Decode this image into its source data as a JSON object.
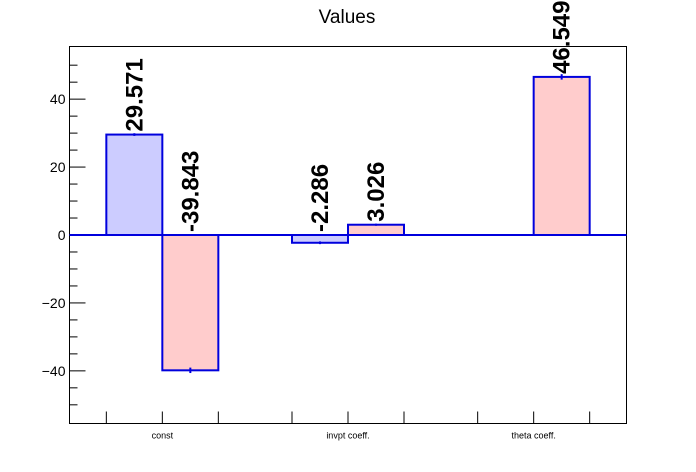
{
  "chart_data": {
    "type": "bar",
    "title": "Values",
    "xlabel": "",
    "ylabel": "",
    "categories": [
      "const",
      "invpt coeff.",
      "theta coeff."
    ],
    "ylim": [
      -55.5,
      55.5
    ],
    "yticks": [
      -40,
      -20,
      0,
      20,
      40
    ],
    "ytick_labels": [
      "−40",
      "−20",
      "0",
      "20",
      "40"
    ],
    "grid": false,
    "series": [
      {
        "values": [
          29.571,
          -2.286,
          null
        ],
        "labels": [
          "29.571",
          "-2.286",
          ""
        ],
        "errors": [
          0.4,
          0.4,
          0
        ],
        "fill": "#ccccff",
        "stroke": "#0000dd"
      },
      {
        "values": [
          -39.843,
          3.026,
          46.549
        ],
        "labels": [
          "-39.843",
          "3.026",
          "46.549"
        ],
        "errors": [
          0.8,
          0.3,
          0.8
        ],
        "fill": "#ffcccc",
        "stroke": "#0000dd"
      }
    ]
  }
}
